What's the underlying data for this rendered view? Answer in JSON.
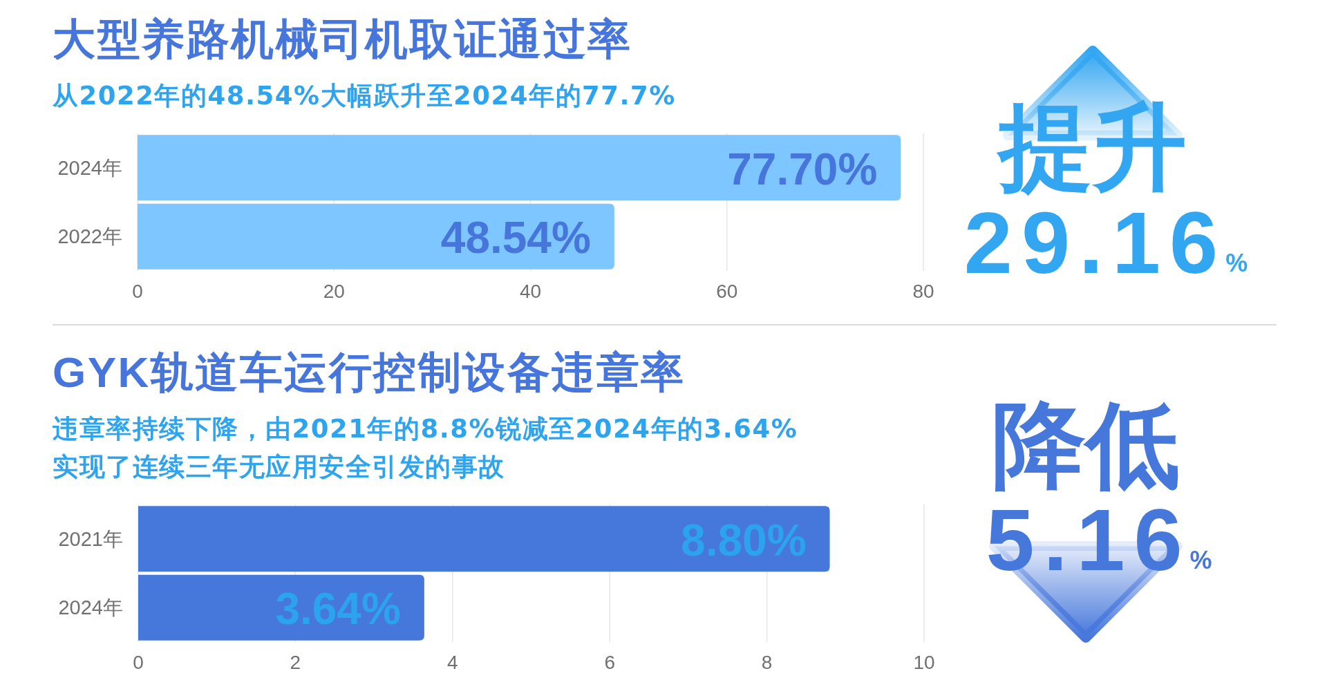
{
  "chart_data": [
    {
      "type": "bar",
      "orientation": "horizontal",
      "title": "大型养路机械司机取证通过率",
      "subtitle": "从2022年的48.54%大幅跃升至2024年的77.7%",
      "categories": [
        "2024年",
        "2022年"
      ],
      "values": [
        77.7,
        48.54
      ],
      "colors": [
        "#7dc6ff",
        "#7dc6ff"
      ],
      "value_labels": [
        "77.70%",
        "48.54%"
      ],
      "xlim": [
        0,
        80
      ],
      "xticks": [
        0,
        20,
        40,
        60,
        80
      ],
      "grid": "x"
    },
    {
      "type": "other",
      "annotations": [
        "提升",
        "29.16",
        "%"
      ],
      "color": "#33a6f1"
    },
    {
      "type": "bar",
      "orientation": "horizontal",
      "title": "GYK轨道车运行控制设备违章率",
      "subtitle": "违章率持续下降，由2021年的8.8%锐减至2024年的3.64%\n实现了连续三年无应用安全引发的事故",
      "categories": [
        "2021年",
        "2024年"
      ],
      "values": [
        8.8,
        3.64
      ],
      "colors": [
        "#4677db",
        "#4677db"
      ],
      "value_labels": [
        "8.80%",
        "3.64%"
      ],
      "xlim": [
        0,
        10
      ],
      "xticks": [
        0,
        2,
        4,
        6,
        8,
        10
      ],
      "grid": "x"
    },
    {
      "type": "other",
      "annotations": [
        "降低",
        "5.16",
        "%"
      ],
      "color": "#4677db"
    }
  ]
}
